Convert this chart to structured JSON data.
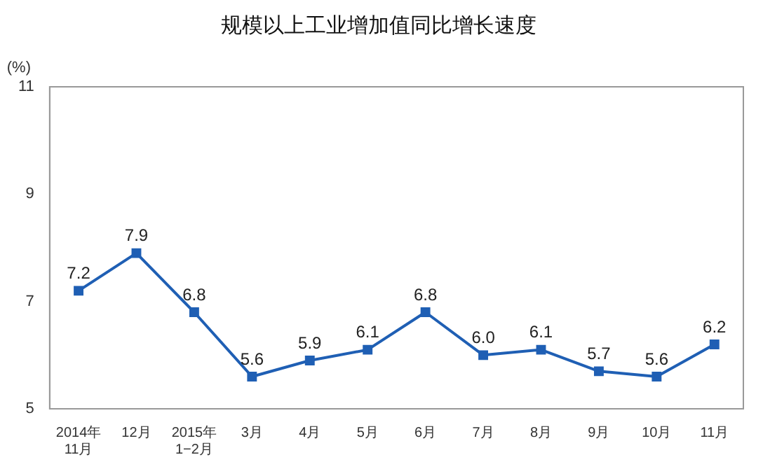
{
  "chart_data": {
    "type": "line",
    "title": "规模以上工业增加值同比增长速度",
    "ylabel": "(%)",
    "categories": [
      "2014年\n11月",
      "12月",
      "2015年\n1−2月",
      "3月",
      "4月",
      "5月",
      "6月",
      "7月",
      "8月",
      "9月",
      "10月",
      "11月"
    ],
    "series": [
      {
        "color": "#1f5fb4",
        "values": [
          7.2,
          7.9,
          6.8,
          5.6,
          5.9,
          6.1,
          6.8,
          6.0,
          6.1,
          5.7,
          5.6,
          6.2
        ],
        "value_labels": [
          "7.2",
          "7.9",
          "6.8",
          "5.6",
          "5.9",
          "6.1",
          "6.8",
          "6.0",
          "6.1",
          "5.7",
          "5.6",
          "6.2"
        ]
      }
    ],
    "ylim": [
      5,
      11
    ],
    "yticks": [
      5,
      7,
      9,
      11
    ],
    "grid": false,
    "legend": false,
    "marker": "square",
    "line_style": "solid"
  }
}
